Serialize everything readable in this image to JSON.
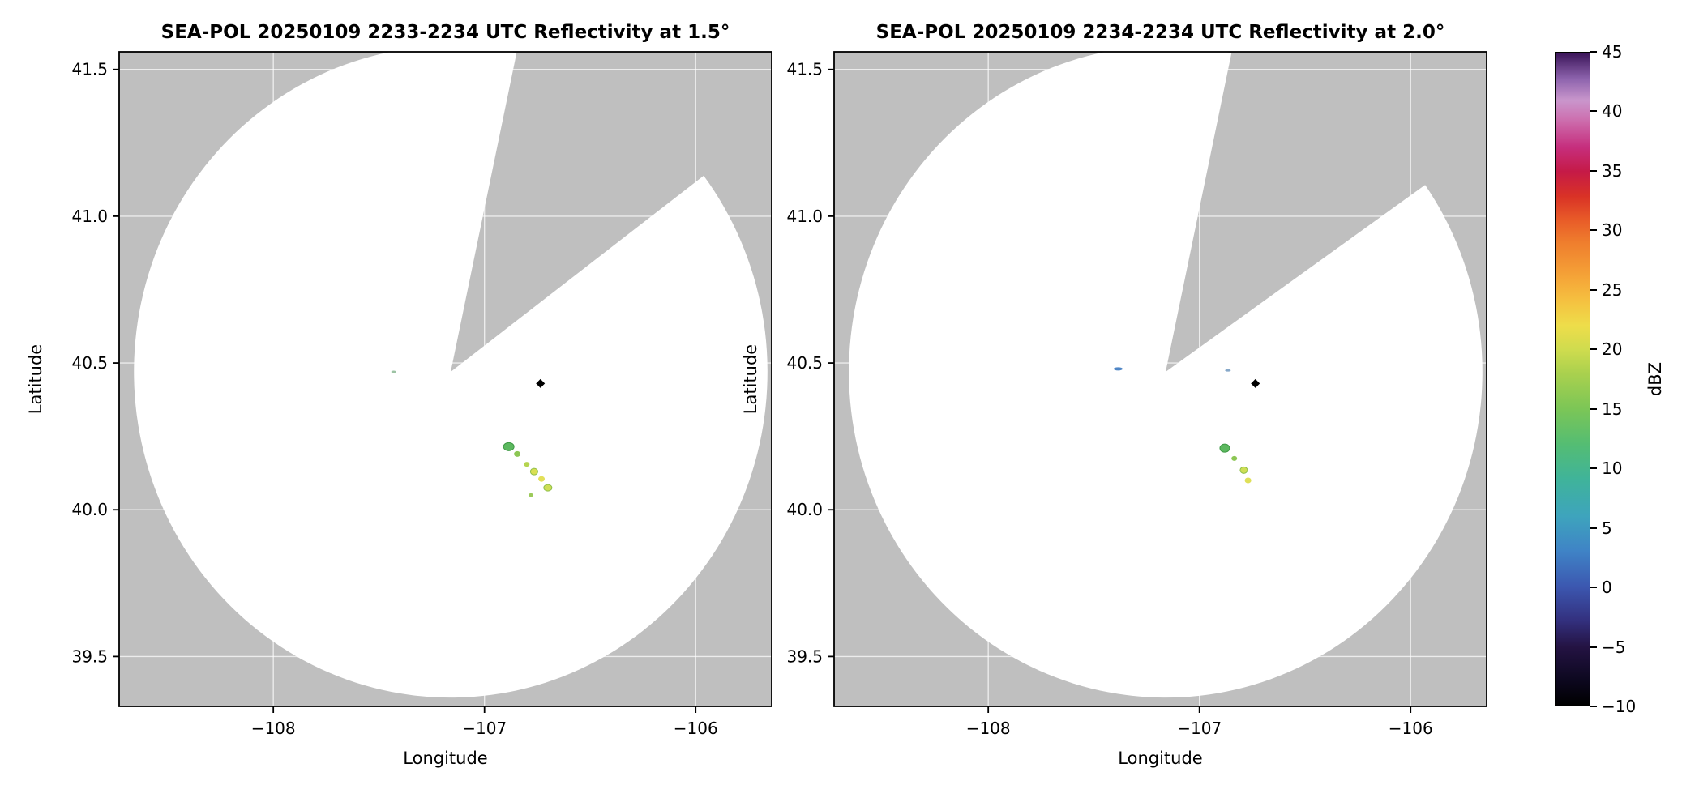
{
  "figure": {
    "background": "#ffffff",
    "panel_bg": "#bfbfbf",
    "grid_color": "rgba(255,255,255,0.7)",
    "axis_color": "#000000",
    "coverage_color": "#ffffff"
  },
  "chart_data": [
    {
      "type": "heatmap",
      "title": "SEA-POL 20250109 2233-2234 UTC Reflectivity at 1.5°",
      "xlabel": "Longitude",
      "ylabel": "Latitude",
      "xlim": [
        -108.73,
        -105.64
      ],
      "ylim": [
        39.33,
        41.56
      ],
      "grid": true,
      "xticks": [
        {
          "v": -108,
          "label": "−108"
        },
        {
          "v": -107,
          "label": "−107"
        },
        {
          "v": -106,
          "label": "−106"
        }
      ],
      "yticks": [
        {
          "v": 39.5,
          "label": "39.5"
        },
        {
          "v": 40.0,
          "label": "40.0"
        },
        {
          "v": 40.5,
          "label": "40.5"
        },
        {
          "v": 41.0,
          "label": "41.0"
        },
        {
          "v": 41.5,
          "label": "41.5"
        }
      ],
      "radar": {
        "center_lon": -107.16,
        "center_lat": 40.47,
        "range_deg_lon": 1.5,
        "range_deg_lat": 1.11,
        "missing_sector_azimuth_deg": [
          12,
          53
        ]
      },
      "marker": {
        "lon": -106.735,
        "lat": 40.43,
        "shape": "diamond",
        "color": "#000000"
      },
      "echoes": [
        {
          "lon": -107.43,
          "lat": 40.47,
          "dbz": 8,
          "color": "#9dc3a4",
          "w": 6,
          "h": 3
        },
        {
          "lon": -106.885,
          "lat": 40.215,
          "dbz": 12,
          "color": "#5cb85f",
          "w": 13,
          "h": 10,
          "stroke": "#3f9a45"
        },
        {
          "lon": -106.845,
          "lat": 40.19,
          "dbz": 14,
          "color": "#8cc654",
          "w": 8,
          "h": 7
        },
        {
          "lon": -106.8,
          "lat": 40.155,
          "dbz": 15,
          "color": "#b5d44f",
          "w": 7,
          "h": 6
        },
        {
          "lon": -106.765,
          "lat": 40.13,
          "dbz": 17,
          "color": "#d9df52",
          "w": 9,
          "h": 8,
          "stroke": "#8fbf4a"
        },
        {
          "lon": -106.73,
          "lat": 40.105,
          "dbz": 18,
          "color": "#e3e059",
          "w": 8,
          "h": 7
        },
        {
          "lon": -106.7,
          "lat": 40.075,
          "dbz": 17,
          "color": "#cede55",
          "w": 10,
          "h": 8,
          "stroke": "#8fbf4a"
        },
        {
          "lon": -106.78,
          "lat": 40.05,
          "dbz": 13,
          "color": "#9cca5a",
          "w": 5,
          "h": 5
        }
      ]
    },
    {
      "type": "heatmap",
      "title": "SEA-POL 20250109 2234-2234 UTC Reflectivity at 2.0°",
      "xlabel": "Longitude",
      "ylabel": "Latitude",
      "xlim": [
        -108.73,
        -105.64
      ],
      "ylim": [
        39.33,
        41.56
      ],
      "grid": true,
      "xticks": [
        {
          "v": -108,
          "label": "−108"
        },
        {
          "v": -107,
          "label": "−107"
        },
        {
          "v": -106,
          "label": "−106"
        }
      ],
      "yticks": [
        {
          "v": 39.5,
          "label": "39.5"
        },
        {
          "v": 40.0,
          "label": "40.0"
        },
        {
          "v": 40.5,
          "label": "40.5"
        },
        {
          "v": 41.0,
          "label": "41.0"
        },
        {
          "v": 41.5,
          "label": "41.5"
        }
      ],
      "radar": {
        "center_lon": -107.16,
        "center_lat": 40.47,
        "range_deg_lon": 1.5,
        "range_deg_lat": 1.11,
        "missing_sector_azimuth_deg": [
          12,
          55
        ]
      },
      "marker": {
        "lon": -106.735,
        "lat": 40.43,
        "shape": "diamond",
        "color": "#000000"
      },
      "echoes": [
        {
          "lon": -107.385,
          "lat": 40.48,
          "dbz": 4,
          "color": "#4f86c6",
          "w": 11,
          "h": 4
        },
        {
          "lon": -106.865,
          "lat": 40.475,
          "dbz": 6,
          "color": "#86a8c9",
          "w": 7,
          "h": 3
        },
        {
          "lon": -106.88,
          "lat": 40.21,
          "dbz": 12,
          "color": "#5cb85f",
          "w": 12,
          "h": 10,
          "stroke": "#3f9a45"
        },
        {
          "lon": -106.835,
          "lat": 40.175,
          "dbz": 13,
          "color": "#8cc654",
          "w": 7,
          "h": 6
        },
        {
          "lon": -106.79,
          "lat": 40.135,
          "dbz": 16,
          "color": "#cede55",
          "w": 9,
          "h": 8,
          "stroke": "#8fbf4a"
        },
        {
          "lon": -106.77,
          "lat": 40.1,
          "dbz": 18,
          "color": "#dfe058",
          "w": 8,
          "h": 7
        }
      ]
    }
  ],
  "colorbar": {
    "label": "dBZ",
    "vmin": -10,
    "vmax": 45,
    "ticks": [
      {
        "v": -10,
        "label": "−10"
      },
      {
        "v": -5,
        "label": "−5"
      },
      {
        "v": 0,
        "label": "0"
      },
      {
        "v": 5,
        "label": "5"
      },
      {
        "v": 10,
        "label": "10"
      },
      {
        "v": 15,
        "label": "15"
      },
      {
        "v": 20,
        "label": "20"
      },
      {
        "v": 25,
        "label": "25"
      },
      {
        "v": 30,
        "label": "30"
      },
      {
        "v": 35,
        "label": "35"
      },
      {
        "v": 40,
        "label": "40"
      },
      {
        "v": 45,
        "label": "45"
      }
    ],
    "stops": [
      {
        "p": 0.0,
        "c": "#000000"
      },
      {
        "p": 0.04,
        "c": "#0d0820"
      },
      {
        "p": 0.09,
        "c": "#241343"
      },
      {
        "p": 0.13,
        "c": "#33307e"
      },
      {
        "p": 0.182,
        "c": "#3c57b0"
      },
      {
        "p": 0.236,
        "c": "#3f83c6"
      },
      {
        "p": 0.29,
        "c": "#3ea4bd"
      },
      {
        "p": 0.345,
        "c": "#3fb39b"
      },
      {
        "p": 0.4,
        "c": "#54bd73"
      },
      {
        "p": 0.455,
        "c": "#7cc656"
      },
      {
        "p": 0.51,
        "c": "#abd14e"
      },
      {
        "p": 0.545,
        "c": "#cfdc4e"
      },
      {
        "p": 0.582,
        "c": "#eedd4a"
      },
      {
        "p": 0.62,
        "c": "#f5c140"
      },
      {
        "p": 0.655,
        "c": "#f5a538"
      },
      {
        "p": 0.71,
        "c": "#ef7d2d"
      },
      {
        "p": 0.745,
        "c": "#e85a28"
      },
      {
        "p": 0.78,
        "c": "#d93226"
      },
      {
        "p": 0.818,
        "c": "#c51a47"
      },
      {
        "p": 0.855,
        "c": "#c62e7d"
      },
      {
        "p": 0.9,
        "c": "#cd73b2"
      },
      {
        "p": 0.927,
        "c": "#c996cc"
      },
      {
        "p": 0.96,
        "c": "#8d63ad"
      },
      {
        "p": 1.0,
        "c": "#3a1458"
      }
    ]
  }
}
